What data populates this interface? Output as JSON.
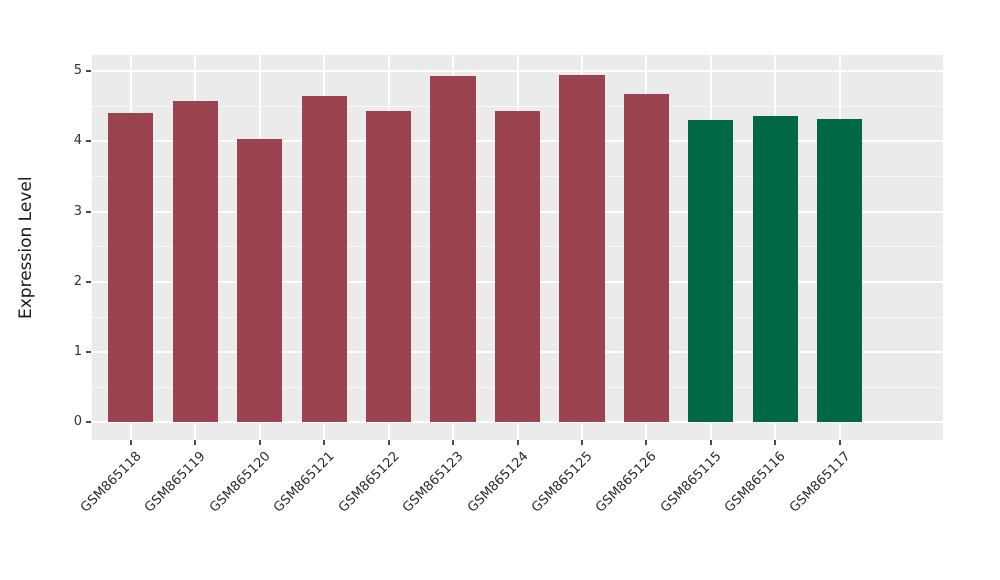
{
  "figure": {
    "background_color": "#ffffff",
    "panel_background_color": "#EBEBEB",
    "gridline_color": "#ffffff",
    "tick_color": "#4a4a4a",
    "text_color": "#333333"
  },
  "chart_data": {
    "type": "bar",
    "title": "",
    "xlabel": "",
    "ylabel": "Expression Level",
    "categories": [
      "GSM865118",
      "GSM865119",
      "GSM865120",
      "GSM865121",
      "GSM865122",
      "GSM865123",
      "GSM865124",
      "GSM865125",
      "GSM865126",
      "GSM865115",
      "GSM865116",
      "GSM865117"
    ],
    "values": [
      4.41,
      4.57,
      4.03,
      4.64,
      4.43,
      4.93,
      4.43,
      4.95,
      4.68,
      4.31,
      4.36,
      4.32
    ],
    "groups": [
      {
        "name": "maroon-group",
        "color": "#9B4351",
        "start_index": 0,
        "end_index": 8
      },
      {
        "name": "green-group",
        "color": "#006846",
        "start_index": 9,
        "end_index": 11
      }
    ],
    "yticks": [
      0,
      1,
      2,
      3,
      4,
      5
    ],
    "ytick_labels": [
      "0",
      "1",
      "2",
      "3",
      "4",
      "5"
    ],
    "minor_ytick_step": 0.5,
    "ylim": [
      -0.25,
      5.23
    ],
    "grid": "white major and minor horizontal lines, white vertical lines at category centers, drawn behind bars",
    "legend_position": "none",
    "x_tick_label_rotation_deg": 45
  }
}
